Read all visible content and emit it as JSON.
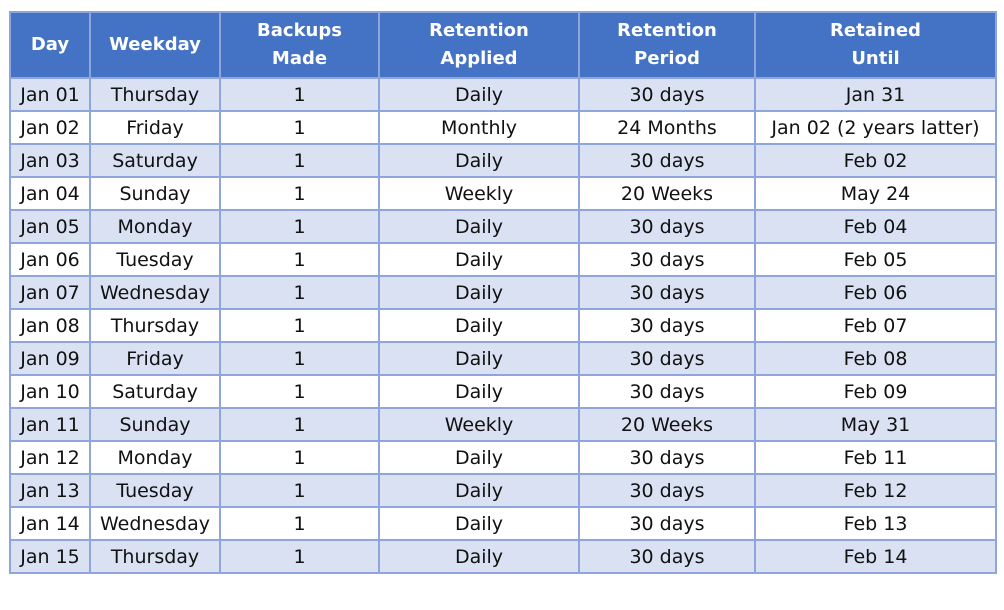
{
  "table": {
    "headers": [
      [
        "Day"
      ],
      [
        "Weekday"
      ],
      [
        "Backups",
        "Made"
      ],
      [
        "Retention",
        "Applied"
      ],
      [
        "Retention",
        "Period"
      ],
      [
        "Retained",
        "Until"
      ]
    ],
    "rows": [
      [
        "Jan 01",
        "Thursday",
        "1",
        "Daily",
        "30 days",
        "Jan 31"
      ],
      [
        "Jan 02",
        "Friday",
        "1",
        "Monthly",
        "24 Months",
        "Jan 02 (2 years latter)"
      ],
      [
        "Jan 03",
        "Saturday",
        "1",
        "Daily",
        "30 days",
        "Feb 02"
      ],
      [
        "Jan 04",
        "Sunday",
        "1",
        "Weekly",
        "20 Weeks",
        "May 24"
      ],
      [
        "Jan 05",
        "Monday",
        "1",
        "Daily",
        "30 days",
        "Feb 04"
      ],
      [
        "Jan 06",
        "Tuesday",
        "1",
        "Daily",
        "30 days",
        "Feb 05"
      ],
      [
        "Jan 07",
        "Wednesday",
        "1",
        "Daily",
        "30 days",
        "Feb 06"
      ],
      [
        "Jan 08",
        "Thursday",
        "1",
        "Daily",
        "30 days",
        "Feb 07"
      ],
      [
        "Jan 09",
        "Friday",
        "1",
        "Daily",
        "30 days",
        "Feb 08"
      ],
      [
        "Jan 10",
        "Saturday",
        "1",
        "Daily",
        "30 days",
        "Feb 09"
      ],
      [
        "Jan 11",
        "Sunday",
        "1",
        "Weekly",
        "20 Weeks",
        "May 31"
      ],
      [
        "Jan 12",
        "Monday",
        "1",
        "Daily",
        "30 days",
        "Feb 11"
      ],
      [
        "Jan 13",
        "Tuesday",
        "1",
        "Daily",
        "30 days",
        "Feb 12"
      ],
      [
        "Jan 14",
        "Wednesday",
        "1",
        "Daily",
        "30 days",
        "Feb 13"
      ],
      [
        "Jan 15",
        "Thursday",
        "1",
        "Daily",
        "30 days",
        "Feb 14"
      ]
    ]
  },
  "colors": {
    "header_bg": "#4472c4",
    "header_text": "#ffffff",
    "row_band": "#d9e1f2",
    "row_plain": "#ffffff",
    "grid": "#8ea6dc"
  }
}
